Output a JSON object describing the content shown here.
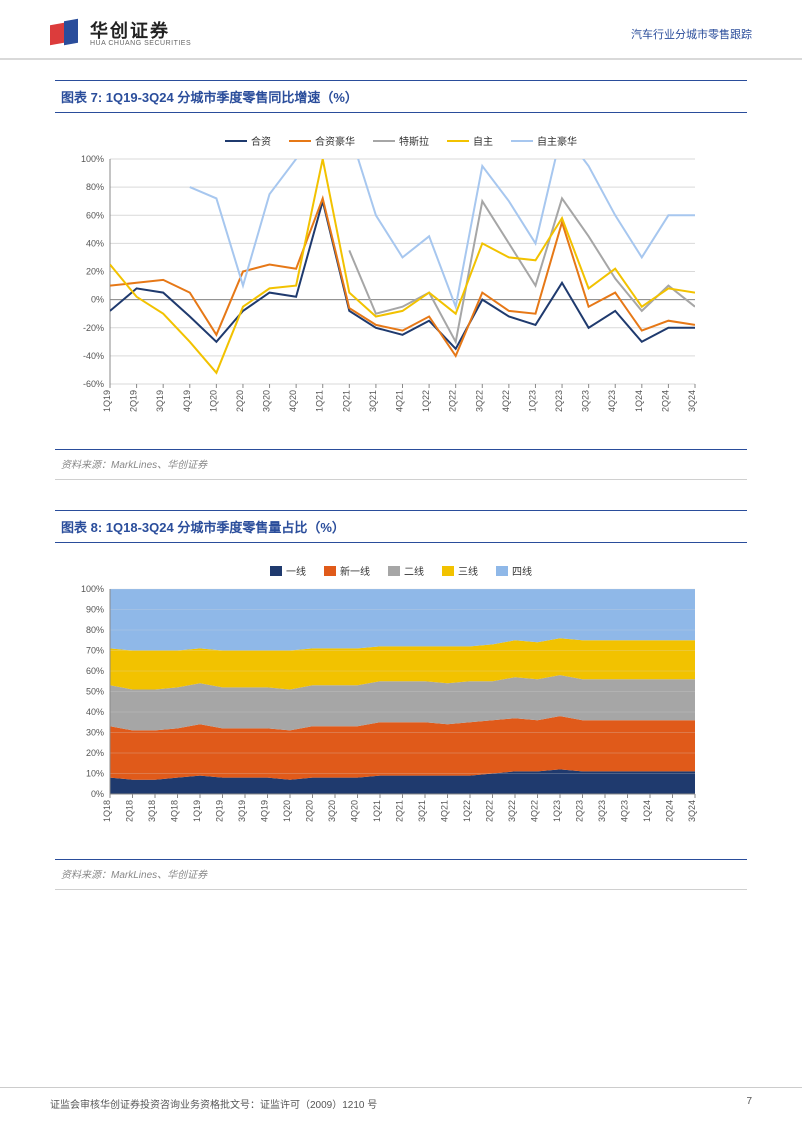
{
  "header": {
    "logo_cn": "华创证券",
    "logo_en": "HUA CHUANG SECURITIES",
    "right_text": "汽车行业分城市零售跟踪"
  },
  "chart7": {
    "title": "图表 7:  1Q19-3Q24 分城市季度零售同比增速（%）",
    "type": "line",
    "source": "资料来源：MarkLines、华创证券",
    "legend": [
      {
        "label": "合资",
        "color": "#1f3a6e"
      },
      {
        "label": "合资豪华",
        "color": "#e67817"
      },
      {
        "label": "特斯拉",
        "color": "#a6a6a6"
      },
      {
        "label": "自主",
        "color": "#f2c200"
      },
      {
        "label": "自主豪华",
        "color": "#a7c7ef"
      }
    ],
    "categories": [
      "1Q19",
      "2Q19",
      "3Q19",
      "4Q19",
      "1Q20",
      "2Q20",
      "3Q20",
      "4Q20",
      "1Q21",
      "2Q21",
      "3Q21",
      "4Q21",
      "1Q22",
      "2Q22",
      "3Q22",
      "4Q22",
      "1Q23",
      "2Q23",
      "3Q23",
      "4Q23",
      "1Q24",
      "2Q24",
      "3Q24"
    ],
    "ylim": [
      -60,
      100
    ],
    "ytick_step": 20,
    "line_width": 2,
    "background_color": "#ffffff",
    "axis_color": "#888888",
    "grid_color": "#d9d9d9",
    "label_fontsize": 9,
    "series": {
      "合资": [
        -8,
        8,
        5,
        -12,
        -30,
        -8,
        5,
        2,
        70,
        -8,
        -20,
        -25,
        -15,
        -35,
        0,
        -12,
        -18,
        12,
        -20,
        -8,
        -30,
        -20,
        -20
      ],
      "合资豪华": [
        10,
        12,
        14,
        5,
        -25,
        20,
        25,
        22,
        72,
        -6,
        -18,
        -22,
        -12,
        -40,
        5,
        -8,
        -10,
        55,
        -5,
        5,
        -22,
        -15,
        -18
      ],
      "特斯拉": [
        null,
        null,
        null,
        null,
        null,
        null,
        null,
        null,
        null,
        35,
        -10,
        -5,
        5,
        -30,
        70,
        40,
        10,
        72,
        45,
        15,
        -8,
        10,
        -5
      ],
      "自主": [
        25,
        2,
        -10,
        -30,
        -52,
        -5,
        8,
        10,
        100,
        5,
        -12,
        -8,
        5,
        -10,
        40,
        30,
        28,
        58,
        8,
        22,
        -5,
        8,
        5
      ],
      "自主豪华": [
        null,
        null,
        null,
        80,
        72,
        10,
        75,
        100,
        140,
        120,
        60,
        30,
        45,
        -5,
        95,
        70,
        40,
        120,
        95,
        60,
        30,
        60,
        60
      ]
    }
  },
  "chart8": {
    "title": "图表 8:  1Q18-3Q24 分城市季度零售量占比（%）",
    "type": "stacked-area",
    "source": "资料来源：MarkLines、华创证券",
    "legend": [
      {
        "label": "一线",
        "color": "#1f3a6e"
      },
      {
        "label": "新一线",
        "color": "#e05a1a"
      },
      {
        "label": "二线",
        "color": "#a6a6a6"
      },
      {
        "label": "三线",
        "color": "#f2c200"
      },
      {
        "label": "四线",
        "color": "#8fb8e8"
      }
    ],
    "categories": [
      "1Q18",
      "2Q18",
      "3Q18",
      "4Q18",
      "1Q19",
      "2Q19",
      "3Q19",
      "4Q19",
      "1Q20",
      "2Q20",
      "3Q20",
      "4Q20",
      "1Q21",
      "2Q21",
      "3Q21",
      "4Q21",
      "1Q22",
      "2Q22",
      "3Q22",
      "4Q22",
      "1Q23",
      "2Q23",
      "3Q23",
      "4Q23",
      "1Q24",
      "2Q24",
      "3Q24"
    ],
    "ylim": [
      0,
      100
    ],
    "ytick_step": 10,
    "background_color": "#ffffff",
    "axis_color": "#888888",
    "grid_color": "#d9d9d9",
    "label_fontsize": 9,
    "series": {
      "一线": [
        8,
        7,
        7,
        8,
        9,
        8,
        8,
        8,
        7,
        8,
        8,
        8,
        9,
        9,
        9,
        9,
        9,
        10,
        11,
        11,
        12,
        11,
        11,
        11,
        11,
        11,
        11
      ],
      "新一线": [
        25,
        24,
        24,
        24,
        25,
        24,
        24,
        24,
        24,
        25,
        25,
        25,
        26,
        26,
        26,
        25,
        26,
        26,
        26,
        25,
        26,
        25,
        25,
        25,
        25,
        25,
        25
      ],
      "二线": [
        20,
        20,
        20,
        20,
        20,
        20,
        20,
        20,
        20,
        20,
        20,
        20,
        20,
        20,
        20,
        20,
        20,
        19,
        20,
        20,
        20,
        20,
        20,
        20,
        20,
        20,
        20
      ],
      "三线": [
        18,
        19,
        19,
        18,
        17,
        18,
        18,
        18,
        19,
        18,
        18,
        18,
        17,
        17,
        17,
        18,
        17,
        18,
        18,
        18,
        18,
        19,
        19,
        19,
        19,
        19,
        19
      ],
      "四线": [
        29,
        30,
        30,
        30,
        29,
        30,
        30,
        30,
        30,
        29,
        29,
        29,
        28,
        28,
        28,
        28,
        28,
        27,
        25,
        26,
        24,
        25,
        25,
        25,
        25,
        25,
        25
      ]
    }
  },
  "footer": {
    "left": "证监会审核华创证券投资咨询业务资格批文号：证监许可（2009）1210 号",
    "page": "7"
  }
}
